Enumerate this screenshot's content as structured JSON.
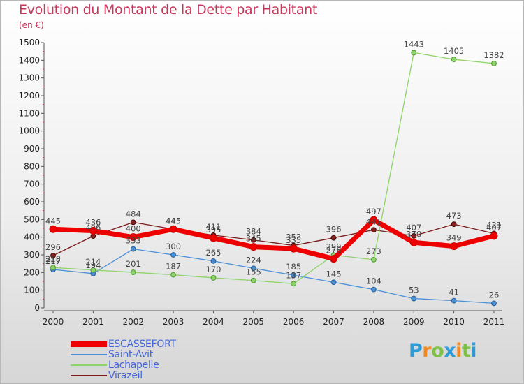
{
  "title": "Evolution du Montant de la Dette par Habitant",
  "subtitle": "(en €)",
  "logo": {
    "text": "Proxiti",
    "colors": [
      "#2e9bd6",
      "#f08a24",
      "#7dc242",
      "#2e9bd6",
      "#f08a24",
      "#7dc242",
      "#2e9bd6"
    ]
  },
  "chart_data": {
    "type": "line",
    "x": [
      "2000",
      "2001",
      "2002",
      "2003",
      "2004",
      "2005",
      "2006",
      "2007",
      "2008",
      "2009",
      "2010",
      "2011"
    ],
    "ylim": [
      0,
      1500
    ],
    "yticks": [
      0,
      100,
      200,
      300,
      400,
      500,
      600,
      700,
      800,
      900,
      1000,
      1100,
      1200,
      1300,
      1400,
      1500
    ],
    "grid": false,
    "legend_position": "bottom-left",
    "series": [
      {
        "name": "Virazeil",
        "color": "#7a1a1a",
        "width": 1.3,
        "marker_fill": "#8b1e1e",
        "marker_stroke": "#3d0a0a",
        "values": [
          296,
          406,
          484,
          445,
          411,
          384,
          353,
          396,
          441,
          407,
          473,
          421
        ],
        "labels": [
          "296",
          "406",
          "484",
          "445",
          "411",
          "384",
          "353",
          "396",
          "441",
          "407",
          "473",
          "421"
        ]
      },
      {
        "name": "Saint-Avit",
        "color": "#4a90d9",
        "width": 1.3,
        "marker_fill": "#4a8fd4",
        "marker_stroke": "#2a5f96",
        "values": [
          217,
          194,
          333,
          300,
          265,
          224,
          185,
          145,
          104,
          53,
          41,
          26
        ],
        "labels": [
          "217",
          "194",
          "333",
          "300",
          "265",
          "224",
          "185",
          "145",
          "104",
          "53",
          "41",
          "26"
        ]
      },
      {
        "name": "Lachapelle",
        "color": "#8ed46a",
        "width": 1.3,
        "marker_fill": "#8ed46a",
        "marker_stroke": "#4f9a2e",
        "values": [
          228,
          214,
          201,
          187,
          170,
          155,
          137,
          299,
          273,
          1443,
          1405,
          1382
        ],
        "labels": [
          "228",
          "214",
          "201",
          "187",
          "170",
          "155",
          "137",
          "299",
          "273",
          "1443",
          "1405",
          "1382"
        ]
      },
      {
        "name": "ESCASSEFORT",
        "color": "#ee0000",
        "width": 7,
        "marker_fill": "#ee0000",
        "marker_stroke": "#cc0000",
        "values": [
          445,
          436,
          400,
          445,
          395,
          345,
          335,
          278,
          497,
          370,
          349,
          407
        ],
        "labels": [
          "445",
          "436",
          "400",
          "445",
          "395",
          "345",
          "335",
          "278",
          "497",
          "370",
          "349",
          "407"
        ]
      }
    ],
    "legend_order": [
      "ESCASSEFORT",
      "Saint-Avit",
      "Lachapelle",
      "Virazeil"
    ]
  }
}
